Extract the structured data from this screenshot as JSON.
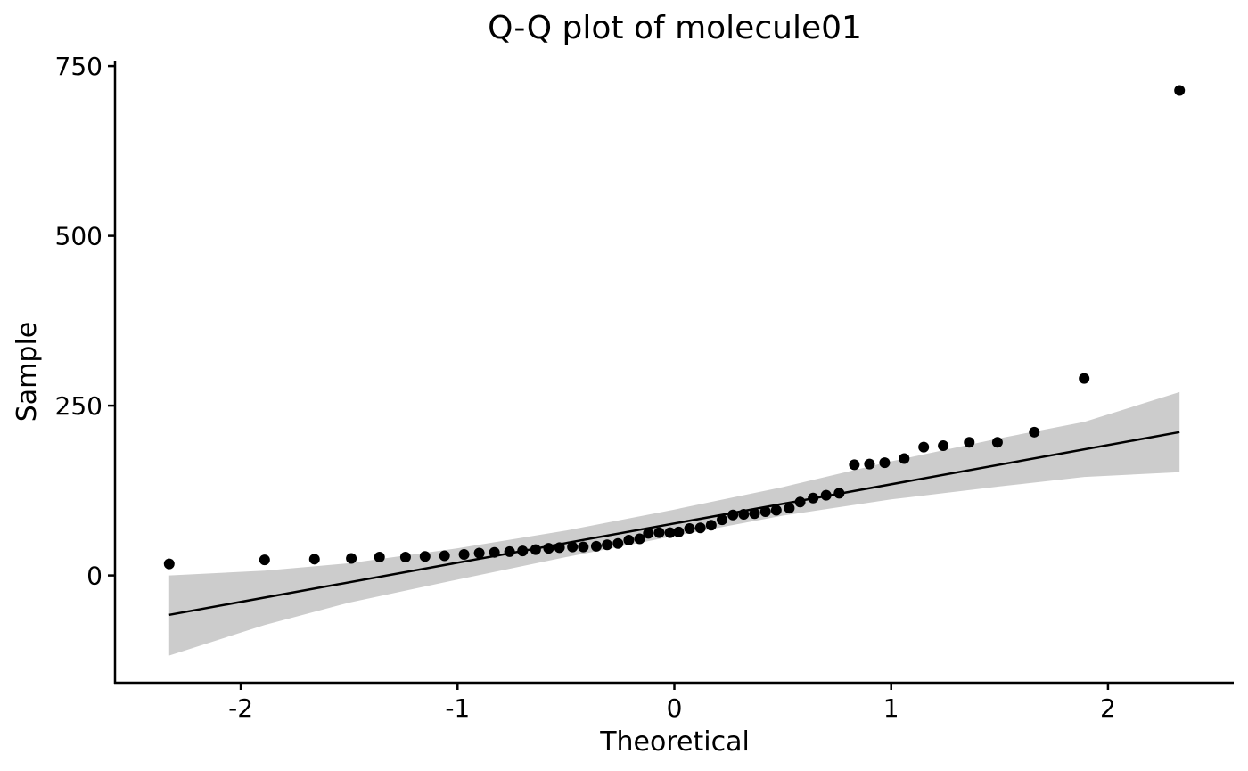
{
  "chart_data": {
    "type": "scatter",
    "title": "Q-Q plot of molecule01",
    "xlabel": "Theoretical",
    "ylabel": "Sample",
    "xlim": [
      -2.58,
      2.58
    ],
    "ylim": [
      -158,
      758
    ],
    "xticks": [
      -2,
      -1,
      0,
      1,
      2
    ],
    "xtick_labels": [
      "-2",
      "-1",
      "0",
      "1",
      "2"
    ],
    "yticks": [
      0,
      250,
      500,
      750
    ],
    "ytick_labels": [
      "0",
      "250",
      "500",
      "750"
    ],
    "grid": false,
    "legend": "none",
    "colors": {
      "points": "#000000",
      "line": "#000000",
      "band": "#cccccc"
    },
    "points": [
      {
        "x": -2.33,
        "y": 17
      },
      {
        "x": -1.89,
        "y": 23
      },
      {
        "x": -1.66,
        "y": 24
      },
      {
        "x": -1.49,
        "y": 25
      },
      {
        "x": -1.36,
        "y": 27
      },
      {
        "x": -1.24,
        "y": 27
      },
      {
        "x": -1.15,
        "y": 28
      },
      {
        "x": -1.06,
        "y": 29
      },
      {
        "x": -0.97,
        "y": 31
      },
      {
        "x": -0.9,
        "y": 33
      },
      {
        "x": -0.83,
        "y": 34
      },
      {
        "x": -0.76,
        "y": 35
      },
      {
        "x": -0.7,
        "y": 36
      },
      {
        "x": -0.64,
        "y": 38
      },
      {
        "x": -0.58,
        "y": 40
      },
      {
        "x": -0.53,
        "y": 41
      },
      {
        "x": -0.47,
        "y": 42
      },
      {
        "x": -0.42,
        "y": 42
      },
      {
        "x": -0.36,
        "y": 43
      },
      {
        "x": -0.31,
        "y": 45
      },
      {
        "x": -0.26,
        "y": 47
      },
      {
        "x": -0.21,
        "y": 52
      },
      {
        "x": -0.16,
        "y": 54
      },
      {
        "x": -0.12,
        "y": 62
      },
      {
        "x": -0.07,
        "y": 63
      },
      {
        "x": -0.02,
        "y": 63
      },
      {
        "x": 0.02,
        "y": 64
      },
      {
        "x": 0.07,
        "y": 69
      },
      {
        "x": 0.12,
        "y": 70
      },
      {
        "x": 0.17,
        "y": 74
      },
      {
        "x": 0.22,
        "y": 82
      },
      {
        "x": 0.27,
        "y": 89
      },
      {
        "x": 0.32,
        "y": 90
      },
      {
        "x": 0.37,
        "y": 91
      },
      {
        "x": 0.42,
        "y": 94
      },
      {
        "x": 0.47,
        "y": 96
      },
      {
        "x": 0.53,
        "y": 99
      },
      {
        "x": 0.58,
        "y": 108
      },
      {
        "x": 0.64,
        "y": 114
      },
      {
        "x": 0.7,
        "y": 118
      },
      {
        "x": 0.76,
        "y": 121
      },
      {
        "x": 0.83,
        "y": 163
      },
      {
        "x": 0.9,
        "y": 164
      },
      {
        "x": 0.97,
        "y": 166
      },
      {
        "x": 1.06,
        "y": 172
      },
      {
        "x": 1.15,
        "y": 189
      },
      {
        "x": 1.24,
        "y": 191
      },
      {
        "x": 1.36,
        "y": 196
      },
      {
        "x": 1.49,
        "y": 196
      },
      {
        "x": 1.66,
        "y": 211
      },
      {
        "x": 1.89,
        "y": 290
      },
      {
        "x": 2.33,
        "y": 714
      }
    ],
    "reference_line": [
      {
        "x": -2.33,
        "y": -58
      },
      {
        "x": 2.33,
        "y": 211
      }
    ],
    "confidence_band": [
      {
        "x": -2.33,
        "lower": -118,
        "upper": 0
      },
      {
        "x": -1.89,
        "lower": -73,
        "upper": 7
      },
      {
        "x": -1.5,
        "lower": -40,
        "upper": 18
      },
      {
        "x": -1.0,
        "lower": -6,
        "upper": 40
      },
      {
        "x": -0.5,
        "lower": 27,
        "upper": 66
      },
      {
        "x": 0.0,
        "lower": 58,
        "upper": 97
      },
      {
        "x": 0.5,
        "lower": 88,
        "upper": 130
      },
      {
        "x": 1.0,
        "lower": 112,
        "upper": 168
      },
      {
        "x": 1.5,
        "lower": 131,
        "upper": 202
      },
      {
        "x": 1.89,
        "lower": 145,
        "upper": 226
      },
      {
        "x": 2.33,
        "lower": 152,
        "upper": 270
      }
    ]
  }
}
